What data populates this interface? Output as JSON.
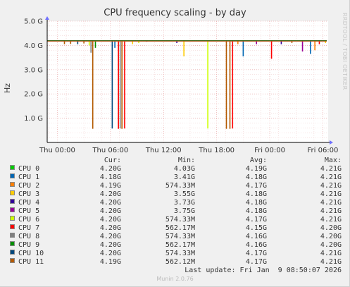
{
  "title": "CPU frequency scaling - by day",
  "side_label": "RRDTOOL / TOBI OETIKER",
  "chart_data": {
    "type": "line",
    "title": "CPU frequency scaling - by day",
    "ylabel": "Hz",
    "ylim": [
      0,
      5000000000
    ],
    "yticks": [
      {
        "v": 1000000000,
        "label": "1.0 G"
      },
      {
        "v": 2000000000,
        "label": "2.0 G"
      },
      {
        "v": 3000000000,
        "label": "3.0 G"
      },
      {
        "v": 4000000000,
        "label": "4.0 G"
      },
      {
        "v": 5000000000,
        "label": "5.0 G"
      }
    ],
    "xrange_hours": [
      -1.15,
      30.6
    ],
    "xticks": [
      {
        "h": 0,
        "label": "Thu 00:00"
      },
      {
        "h": 6,
        "label": "Thu 06:00"
      },
      {
        "h": 12,
        "label": "Thu 12:00"
      },
      {
        "h": 18,
        "label": "Thu 18:00"
      },
      {
        "h": 24,
        "label": "Fri 00:00"
      },
      {
        "h": 30,
        "label": "Fri 06:00"
      }
    ],
    "grid": true,
    "baseline_hz": 4200000000,
    "dips": [
      {
        "h": 0.8,
        "v": 4050000000,
        "series": 11
      },
      {
        "h": 1.5,
        "v": 4060000000,
        "series": 11
      },
      {
        "h": 2.3,
        "v": 4050000000,
        "series": 10
      },
      {
        "h": 3.0,
        "v": 4080000000,
        "series": 11
      },
      {
        "h": 3.6,
        "v": 4000000000,
        "series": 6
      },
      {
        "h": 3.8,
        "v": 3700000000,
        "series": 8
      },
      {
        "h": 4.0,
        "v": 562000000,
        "series": 11
      },
      {
        "h": 4.3,
        "v": 3900000000,
        "series": 9
      },
      {
        "h": 6.2,
        "v": 574000000,
        "series": 10
      },
      {
        "h": 6.5,
        "v": 3900000000,
        "series": 1
      },
      {
        "h": 6.9,
        "v": 562000000,
        "series": 7
      },
      {
        "h": 7.1,
        "v": 574000000,
        "series": 8
      },
      {
        "h": 7.3,
        "v": 562000000,
        "series": 11
      },
      {
        "h": 7.6,
        "v": 574000000,
        "series": 7
      },
      {
        "h": 8.5,
        "v": 4050000000,
        "series": 3
      },
      {
        "h": 9.2,
        "v": 4100000000,
        "series": 6
      },
      {
        "h": 10.1,
        "v": 4150000000,
        "series": 5
      },
      {
        "h": 13.5,
        "v": 4100000000,
        "series": 4
      },
      {
        "h": 14.3,
        "v": 3550000000,
        "series": 3
      },
      {
        "h": 17.0,
        "v": 574000000,
        "series": 6
      },
      {
        "h": 19.1,
        "v": 562000000,
        "series": 11
      },
      {
        "h": 19.5,
        "v": 562000000,
        "series": 11
      },
      {
        "h": 19.8,
        "v": 574000000,
        "series": 7
      },
      {
        "h": 20.4,
        "v": 4050000000,
        "series": 2
      },
      {
        "h": 21.0,
        "v": 3550000000,
        "series": 1
      },
      {
        "h": 22.5,
        "v": 4050000000,
        "series": 5
      },
      {
        "h": 24.2,
        "v": 3450000000,
        "series": 7
      },
      {
        "h": 25.3,
        "v": 4050000000,
        "series": 4
      },
      {
        "h": 26.5,
        "v": 4100000000,
        "series": 11
      },
      {
        "h": 27.7,
        "v": 3750000000,
        "series": 5
      },
      {
        "h": 28.6,
        "v": 3650000000,
        "series": 1
      },
      {
        "h": 29.1,
        "v": 3800000000,
        "series": 2
      },
      {
        "h": 29.6,
        "v": 4050000000,
        "series": 7
      },
      {
        "h": 30.3,
        "v": 4100000000,
        "series": 3
      }
    ],
    "columns": [
      "Cur:",
      "Min:",
      "Avg:",
      "Max:"
    ],
    "series": [
      {
        "name": "CPU 0",
        "color": "#00cc00",
        "cur": "4.20G",
        "min": "4.03G",
        "avg": "4.19G",
        "max": "4.21G"
      },
      {
        "name": "CPU 1",
        "color": "#0066b3",
        "cur": "4.18G",
        "min": "3.41G",
        "avg": "4.18G",
        "max": "4.21G"
      },
      {
        "name": "CPU 2",
        "color": "#ff8000",
        "cur": "4.19G",
        "min": "574.33M",
        "avg": "4.17G",
        "max": "4.21G"
      },
      {
        "name": "CPU 3",
        "color": "#ffcc00",
        "cur": "4.20G",
        "min": "3.55G",
        "avg": "4.18G",
        "max": "4.21G"
      },
      {
        "name": "CPU 4",
        "color": "#330099",
        "cur": "4.20G",
        "min": "3.73G",
        "avg": "4.18G",
        "max": "4.21G"
      },
      {
        "name": "CPU 5",
        "color": "#990099",
        "cur": "4.20G",
        "min": "3.75G",
        "avg": "4.18G",
        "max": "4.21G"
      },
      {
        "name": "CPU 6",
        "color": "#ccff00",
        "cur": "4.20G",
        "min": "574.33M",
        "avg": "4.17G",
        "max": "4.21G"
      },
      {
        "name": "CPU 7",
        "color": "#ff0000",
        "cur": "4.20G",
        "min": "562.17M",
        "avg": "4.15G",
        "max": "4.20G"
      },
      {
        "name": "CPU 8",
        "color": "#808080",
        "cur": "4.20G",
        "min": "574.33M",
        "avg": "4.16G",
        "max": "4.20G"
      },
      {
        "name": "CPU 9",
        "color": "#008f00",
        "cur": "4.20G",
        "min": "562.17M",
        "avg": "4.16G",
        "max": "4.20G"
      },
      {
        "name": "CPU 10",
        "color": "#00487d",
        "cur": "4.20G",
        "min": "574.33M",
        "avg": "4.17G",
        "max": "4.21G"
      },
      {
        "name": "CPU 11",
        "color": "#b35a00",
        "cur": "4.19G",
        "min": "562.12M",
        "avg": "4.17G",
        "max": "4.21G"
      }
    ]
  },
  "last_update": "Last update: Fri Jan  9 08:50:07 2026",
  "version": "Munin 2.0.76"
}
